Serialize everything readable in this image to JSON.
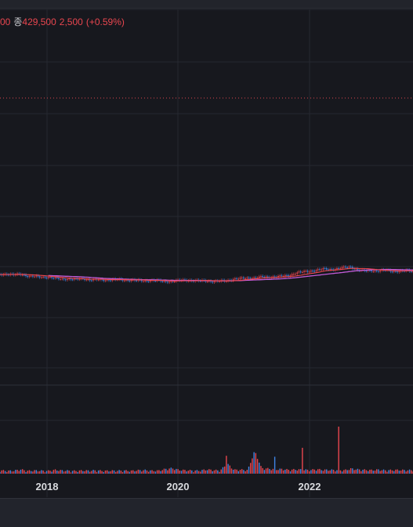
{
  "legend": {
    "prev_value": "00",
    "close_label": "종",
    "close_value": "429,500",
    "change": "2,500",
    "change_pct": "(+0.59%)"
  },
  "colors": {
    "background": "#17181e",
    "grid": "#262830",
    "up": "#e9464f",
    "down": "#3f86e6",
    "ma_short": "#e9464f",
    "ma_long": "#c25bd8",
    "reference_line": "#d9454e"
  },
  "chart_data": {
    "type": "candlestick+volume",
    "x_tick_labels": [
      "2018",
      "2020",
      "2022"
    ],
    "grid": true,
    "price_series_shape": [
      0.3,
      0.293,
      0.31,
      0.296,
      0.33,
      0.342,
      0.354,
      0.35,
      0.376,
      0.392,
      0.386,
      0.398,
      0.38,
      0.406,
      0.402,
      0.41,
      0.404,
      0.398,
      0.412,
      0.408,
      0.42,
      0.428,
      0.414,
      0.422,
      0.44,
      0.432,
      0.42,
      0.412,
      0.418,
      0.426,
      0.424,
      0.438,
      0.43,
      0.422,
      0.39,
      0.378,
      0.372,
      0.366,
      0.35,
      0.356,
      0.343,
      0.336,
      0.32,
      0.27,
      0.252,
      0.236,
      0.218,
      0.196,
      0.206,
      0.19,
      0.168,
      0.158,
      0.214,
      0.232,
      0.226,
      0.234,
      0.218,
      0.238,
      0.244,
      0.228,
      0.236
    ],
    "volume_series_shape": [
      0.08,
      0.05,
      0.06,
      0.12,
      0.05,
      0.07,
      0.06,
      0.05,
      0.1,
      0.07,
      0.06,
      0.05,
      0.07,
      0.06,
      0.08,
      0.05,
      0.06,
      0.06,
      0.07,
      0.05,
      0.08,
      0.09,
      0.06,
      0.06,
      0.14,
      0.18,
      0.1,
      0.08,
      0.07,
      0.06,
      0.12,
      0.09,
      0.07,
      0.4,
      0.1,
      0.11,
      0.09,
      1.0,
      0.18,
      0.16,
      0.12,
      0.14,
      0.1,
      0.12,
      0.11,
      0.09,
      0.13,
      0.1,
      0.1,
      0.09,
      0.08,
      0.16,
      0.12,
      0.1,
      0.09,
      0.11,
      0.08,
      0.09,
      0.1,
      0.08,
      0.09
    ]
  }
}
